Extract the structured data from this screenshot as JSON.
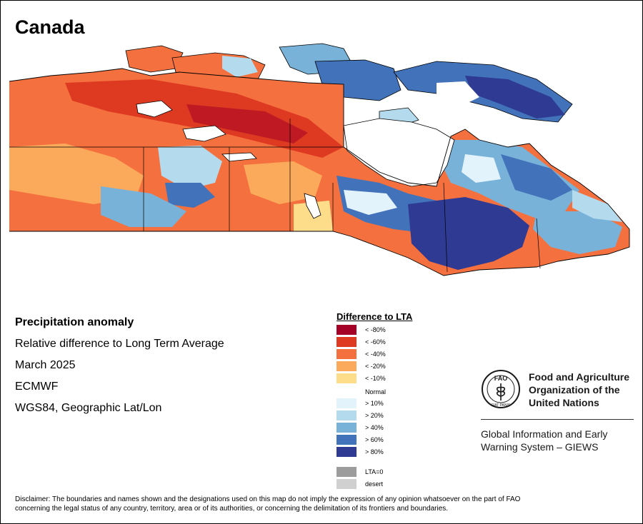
{
  "title": "Canada",
  "info": {
    "heading": "Precipitation anomaly",
    "subheading": "Relative difference to Long Term Average",
    "date": "March 2025",
    "source": "ECMWF",
    "projection": "WGS84, Geographic Lat/Lon"
  },
  "legend": {
    "title": "Difference to LTA",
    "items": [
      {
        "label": "< -80%",
        "color": "#a50026"
      },
      {
        "label": "< -60%",
        "color": "#de3a22"
      },
      {
        "label": "< -40%",
        "color": "#f4713f"
      },
      {
        "label": "< -20%",
        "color": "#fba95a"
      },
      {
        "label": "< -10%",
        "color": "#fddc8a"
      },
      {
        "label": "Normal",
        "color": "#ffffff"
      },
      {
        "label": "> 10%",
        "color": "#e3f3fb"
      },
      {
        "label": "> 20%",
        "color": "#b3daed"
      },
      {
        "label": "> 40%",
        "color": "#78b2d8"
      },
      {
        "label": "> 60%",
        "color": "#4272ba"
      },
      {
        "label": "> 80%",
        "color": "#2f3a93"
      },
      {
        "label": "LTA=0",
        "color": "#9c9c9c"
      },
      {
        "label": "desert",
        "color": "#d0d0d0"
      }
    ]
  },
  "fao": {
    "logo_letters": "FAO",
    "motto": "FIAT PANIS",
    "name_lines": [
      "Food and Agriculture",
      "Organization of the",
      "United Nations"
    ],
    "giews_lines": [
      "Global Information and Early",
      "Warning System – GIEWS"
    ]
  },
  "disclaimer_lines": [
    "Disclaimer: The boundaries and names shown and the designations used on this map do not imply the expression of any opinion whatsoever on the part of FAO",
    "concerning the legal status of any country, territory, area or of its authorities, or concerning the delimitation of its frontiers and boundaries."
  ]
}
